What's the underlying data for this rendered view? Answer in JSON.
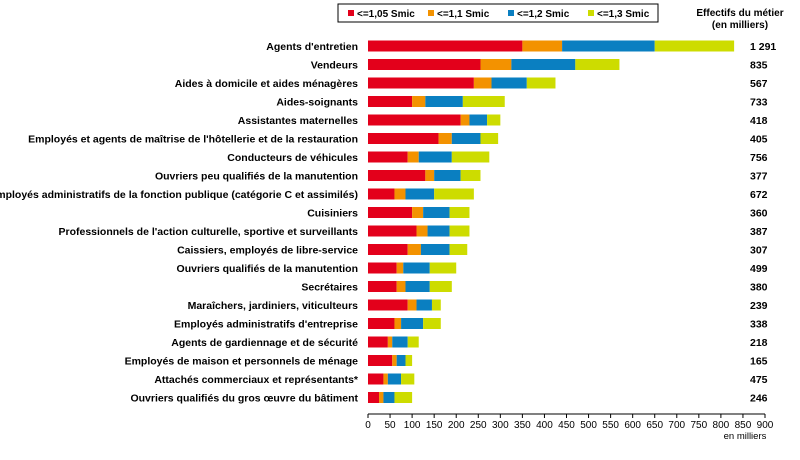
{
  "chart_data": {
    "type": "bar",
    "orientation": "horizontal",
    "stacked": true,
    "categories": [
      "Agents d'entretien",
      "Vendeurs",
      "Aides à domicile et aides ménagères",
      "Aides-soignants",
      "Assistantes maternelles",
      "Employés et agents de maîtrise de l'hôtellerie et de la restauration",
      "Conducteurs de véhicules",
      "Ouvriers peu qualifiés de la manutention",
      "Employés administratifs de la fonction publique (catégorie C et assimilés)",
      "Cuisiniers",
      "Professionnels de l'action culturelle, sportive et surveillants",
      "Caissiers, employés de libre-service",
      "Ouvriers qualifiés de la manutention",
      "Secrétaires",
      "Maraîchers, jardiniers, viticulteurs",
      "Employés administratifs d'entreprise",
      "Agents de gardiennage et de sécurité",
      "Employés de maison et personnels de ménage",
      "Attachés commerciaux et représentants*",
      "Ouvriers qualifiés du gros œuvre du bâtiment"
    ],
    "series": [
      {
        "name": "<=1,05 Smic",
        "color": "#e3001b",
        "values": [
          350,
          255,
          240,
          100,
          210,
          160,
          90,
          130,
          60,
          100,
          110,
          90,
          65,
          65,
          90,
          60,
          45,
          55,
          35,
          25
        ]
      },
      {
        "name": "<=1,1 Smic",
        "color": "#f39200",
        "values": [
          90,
          70,
          40,
          30,
          20,
          30,
          25,
          20,
          25,
          25,
          25,
          30,
          15,
          20,
          20,
          15,
          10,
          10,
          10,
          10
        ]
      },
      {
        "name": "<=1,2 Smic",
        "color": "#0a7fc1",
        "values": [
          210,
          145,
          80,
          85,
          40,
          65,
          75,
          60,
          65,
          60,
          50,
          65,
          60,
          55,
          35,
          50,
          35,
          20,
          30,
          25
        ]
      },
      {
        "name": "<=1,3 Smic",
        "color": "#cddc00",
        "values": [
          180,
          100,
          65,
          95,
          30,
          40,
          85,
          45,
          90,
          45,
          45,
          40,
          60,
          50,
          20,
          40,
          25,
          15,
          30,
          40
        ]
      }
    ],
    "effectifs_header": [
      "Effectifs du métier",
      "(en milliers)"
    ],
    "effectifs": [
      "1 291",
      "835",
      "567",
      "733",
      "418",
      "405",
      "756",
      "377",
      "672",
      "360",
      "387",
      "307",
      "499",
      "380",
      "239",
      "338",
      "218",
      "165",
      "475",
      "246"
    ],
    "xlim": [
      0,
      900
    ],
    "xticks": [
      "0",
      "50",
      "100",
      "150",
      "200",
      "250",
      "300",
      "350",
      "400",
      "450",
      "500",
      "550",
      "600",
      "650",
      "700",
      "750",
      "800",
      "850",
      "900"
    ],
    "xlabel": "en milliers",
    "legend_position": "top",
    "grid": false
  }
}
